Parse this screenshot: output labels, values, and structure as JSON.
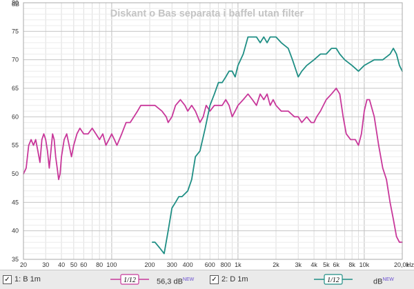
{
  "chart_data": {
    "type": "line",
    "title": "Diskant o Bas separata i baffel utan filter",
    "ylabel": "dB",
    "xlabel": "",
    "x_scale": "log",
    "xlim": [
      20,
      20000
    ],
    "ylim": [
      35,
      80
    ],
    "x_ticks": [
      20,
      30,
      40,
      50,
      60,
      80,
      100,
      200,
      300,
      400,
      600,
      800,
      1000,
      2000,
      3000,
      4000,
      5000,
      6000,
      8000,
      10000,
      20000
    ],
    "x_tick_labels": [
      "20",
      "30",
      "40",
      "50",
      "60",
      "80",
      "100",
      "200",
      "300",
      "400",
      "600",
      "800",
      "1k",
      "2k",
      "3k",
      "4k",
      "5k",
      "6k",
      "8k",
      "10k",
      "20,0k"
    ],
    "x_unit_label": "Hz",
    "y_ticks": [
      35,
      40,
      45,
      50,
      55,
      60,
      65,
      70,
      75,
      80
    ],
    "grid": true,
    "series": [
      {
        "name": "1: B 1m",
        "color": "#c8379a",
        "points": [
          [
            20,
            50
          ],
          [
            21,
            51
          ],
          [
            22,
            55
          ],
          [
            23,
            56
          ],
          [
            24,
            55
          ],
          [
            25,
            56
          ],
          [
            26,
            54
          ],
          [
            27,
            52
          ],
          [
            28,
            56
          ],
          [
            29,
            57
          ],
          [
            30,
            56
          ],
          [
            31,
            54
          ],
          [
            32,
            51
          ],
          [
            33,
            54
          ],
          [
            34,
            57
          ],
          [
            35,
            56
          ],
          [
            36,
            53
          ],
          [
            37,
            51
          ],
          [
            38,
            49
          ],
          [
            39,
            50
          ],
          [
            40,
            53
          ],
          [
            42,
            56
          ],
          [
            44,
            57
          ],
          [
            46,
            55
          ],
          [
            48,
            53
          ],
          [
            50,
            55
          ],
          [
            53,
            57
          ],
          [
            56,
            58
          ],
          [
            60,
            57
          ],
          [
            65,
            57
          ],
          [
            70,
            58
          ],
          [
            75,
            57
          ],
          [
            80,
            56
          ],
          [
            85,
            57
          ],
          [
            90,
            55
          ],
          [
            95,
            56
          ],
          [
            100,
            57
          ],
          [
            105,
            56
          ],
          [
            110,
            55
          ],
          [
            120,
            57
          ],
          [
            130,
            59
          ],
          [
            140,
            59
          ],
          [
            150,
            60
          ],
          [
            160,
            61
          ],
          [
            170,
            62
          ],
          [
            180,
            62
          ],
          [
            200,
            62
          ],
          [
            220,
            62
          ],
          [
            250,
            61
          ],
          [
            270,
            60
          ],
          [
            280,
            59
          ],
          [
            300,
            60
          ],
          [
            320,
            62
          ],
          [
            350,
            63
          ],
          [
            380,
            62
          ],
          [
            400,
            61
          ],
          [
            430,
            62
          ],
          [
            460,
            61
          ],
          [
            480,
            60
          ],
          [
            500,
            59
          ],
          [
            530,
            60
          ],
          [
            560,
            62
          ],
          [
            600,
            61
          ],
          [
            650,
            62
          ],
          [
            700,
            62
          ],
          [
            750,
            62
          ],
          [
            800,
            63
          ],
          [
            850,
            62
          ],
          [
            900,
            60
          ],
          [
            950,
            61
          ],
          [
            1000,
            62
          ],
          [
            1100,
            63
          ],
          [
            1200,
            64
          ],
          [
            1300,
            63
          ],
          [
            1400,
            62
          ],
          [
            1500,
            64
          ],
          [
            1600,
            63
          ],
          [
            1700,
            64
          ],
          [
            1800,
            62
          ],
          [
            1900,
            63
          ],
          [
            2000,
            62
          ],
          [
            2200,
            61
          ],
          [
            2500,
            61
          ],
          [
            2800,
            60
          ],
          [
            3000,
            60
          ],
          [
            3200,
            59
          ],
          [
            3500,
            60
          ],
          [
            3800,
            59
          ],
          [
            4000,
            59
          ],
          [
            4200,
            60
          ],
          [
            4500,
            61
          ],
          [
            5000,
            63
          ],
          [
            5500,
            64
          ],
          [
            6000,
            65
          ],
          [
            6400,
            64
          ],
          [
            6800,
            60
          ],
          [
            7200,
            57
          ],
          [
            7800,
            56
          ],
          [
            8500,
            56
          ],
          [
            9000,
            55
          ],
          [
            9500,
            57
          ],
          [
            10000,
            61
          ],
          [
            10500,
            63
          ],
          [
            11000,
            63
          ],
          [
            12000,
            60
          ],
          [
            13000,
            55
          ],
          [
            14000,
            51
          ],
          [
            15000,
            49
          ],
          [
            16000,
            45
          ],
          [
            17000,
            42
          ],
          [
            18000,
            39
          ],
          [
            19000,
            38
          ],
          [
            20000,
            38
          ]
        ]
      },
      {
        "name": "2: D 1m",
        "color": "#1e8e84",
        "points": [
          [
            210,
            38
          ],
          [
            220,
            38
          ],
          [
            240,
            37
          ],
          [
            260,
            36
          ],
          [
            280,
            40
          ],
          [
            300,
            44
          ],
          [
            320,
            45
          ],
          [
            340,
            46
          ],
          [
            360,
            46
          ],
          [
            400,
            47
          ],
          [
            430,
            49
          ],
          [
            460,
            53
          ],
          [
            500,
            54
          ],
          [
            550,
            58
          ],
          [
            600,
            62
          ],
          [
            650,
            64
          ],
          [
            700,
            66
          ],
          [
            750,
            66
          ],
          [
            800,
            67
          ],
          [
            850,
            68
          ],
          [
            900,
            68
          ],
          [
            950,
            67
          ],
          [
            1000,
            69
          ],
          [
            1100,
            71
          ],
          [
            1200,
            74
          ],
          [
            1300,
            74
          ],
          [
            1400,
            74
          ],
          [
            1500,
            73
          ],
          [
            1600,
            74
          ],
          [
            1700,
            73
          ],
          [
            1800,
            74
          ],
          [
            1900,
            74
          ],
          [
            2000,
            74
          ],
          [
            2200,
            73
          ],
          [
            2500,
            72
          ],
          [
            2700,
            70
          ],
          [
            3000,
            67
          ],
          [
            3200,
            68
          ],
          [
            3500,
            69
          ],
          [
            4000,
            70
          ],
          [
            4500,
            71
          ],
          [
            5000,
            71
          ],
          [
            5500,
            72
          ],
          [
            6000,
            72
          ],
          [
            6400,
            71
          ],
          [
            7000,
            70
          ],
          [
            8000,
            69
          ],
          [
            9000,
            68
          ],
          [
            10000,
            69
          ],
          [
            12000,
            70
          ],
          [
            14000,
            70
          ],
          [
            16000,
            71
          ],
          [
            17000,
            72
          ],
          [
            18000,
            71
          ],
          [
            19000,
            69
          ],
          [
            20000,
            68
          ]
        ]
      }
    ]
  },
  "legend": {
    "items": [
      {
        "checked": "✓",
        "label": "1: B 1m",
        "smoothing": "1/12",
        "value": "56,3 dB",
        "value_sup": "NEW"
      },
      {
        "checked": "✓",
        "label": "2: D 1m",
        "smoothing": "1/12",
        "value": "dB",
        "value_sup": "NEW"
      }
    ]
  }
}
